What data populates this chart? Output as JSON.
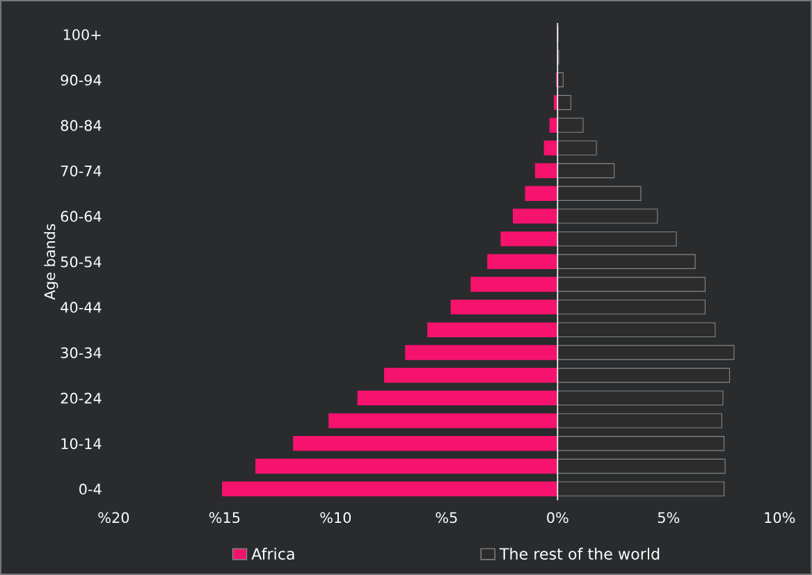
{
  "chart_data": {
    "type": "bar",
    "orientation": "horizontal",
    "stacked": true,
    "ylabel": "Age bands",
    "categories": [
      "100+",
      null,
      "90-94",
      null,
      "80-84",
      null,
      "70-74",
      null,
      "60-64",
      null,
      "50-54",
      null,
      "40-44",
      null,
      "30-34",
      null,
      "20-24",
      null,
      "10-14",
      null,
      "0-4"
    ],
    "series": [
      {
        "name": "Africa",
        "color": "#f5136e",
        "values": [
          0,
          0,
          -0.05,
          -0.15,
          -0.35,
          -0.6,
          -1.0,
          -1.45,
          -2.0,
          -2.55,
          -3.15,
          -3.9,
          -4.8,
          -5.85,
          -6.85,
          -7.8,
          -9.0,
          -10.3,
          -11.9,
          -13.6,
          -15.1
        ]
      },
      {
        "name": "The rest of the world",
        "color": "#2c2c2c",
        "values": [
          0.02,
          0.05,
          0.25,
          0.6,
          1.15,
          1.75,
          2.55,
          3.75,
          4.5,
          5.35,
          6.2,
          6.65,
          6.65,
          7.1,
          7.95,
          7.75,
          7.45,
          7.4,
          7.5,
          7.55,
          7.5
        ]
      }
    ],
    "xlim": [
      -20,
      10
    ],
    "xticks": [
      {
        "value": -20,
        "label": "%20"
      },
      {
        "value": -15,
        "label": "%15"
      },
      {
        "value": -10,
        "label": "%10"
      },
      {
        "value": -5,
        "label": "%5"
      },
      {
        "value": 0,
        "label": "0%"
      },
      {
        "value": 5,
        "label": "5%"
      },
      {
        "value": 10,
        "label": "10%"
      }
    ],
    "ref_lines": [
      {
        "axis": "x",
        "value": 0,
        "color": "#ffffff"
      }
    ],
    "grid": false,
    "legend": "bottom"
  }
}
